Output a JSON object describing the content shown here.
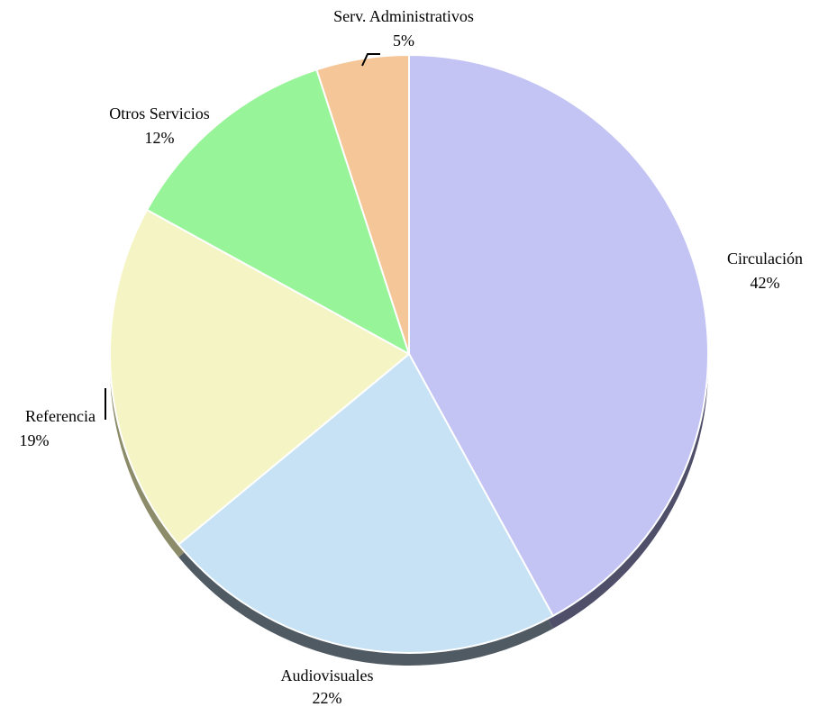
{
  "chart_data": {
    "type": "pie",
    "title": "",
    "start_angle_deg": 0,
    "direction": "clockwise",
    "slices": [
      {
        "label": "Circulación",
        "value": 42,
        "value_label": "42%",
        "color": "#c4c4f4",
        "side_color": "#4f4f6a"
      },
      {
        "label": "Audiovisuales",
        "value": 22,
        "value_label": "22%",
        "color": "#c6e2f4",
        "side_color": "#505a63"
      },
      {
        "label": "Referencia",
        "value": 19,
        "value_label": "19%",
        "color": "#f4f4c4",
        "side_color": "#8c8c6a"
      },
      {
        "label": "Otros Servicios",
        "value": 12,
        "value_label": "12%",
        "color": "#98f498",
        "side_color": "#4e7a4e"
      },
      {
        "label": "Serv. Administrativos",
        "value": 5,
        "value_label": "5%",
        "color": "#f4c698",
        "side_color": "#7a634c"
      }
    ]
  }
}
